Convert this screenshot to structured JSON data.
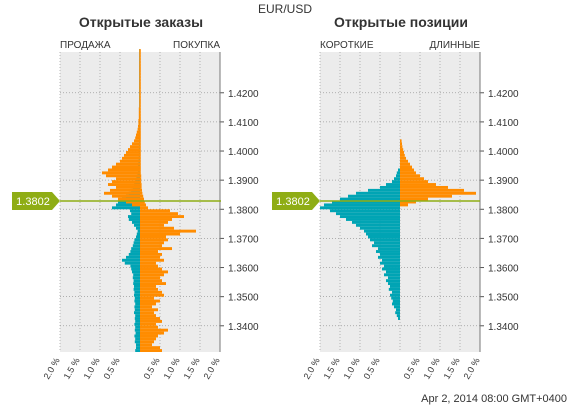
{
  "symbol": "EUR/USD",
  "timestamp": "Apr 2, 2014 08:00 GMT+0400",
  "colors": {
    "short": "#00a4b4",
    "long": "#ff8c00",
    "current": "#8fad15",
    "plot_bg": "#ececec",
    "grid": "#9a9a9a"
  },
  "current_price": "1.3802",
  "y_ticks": [
    "1.4200",
    "1.4100",
    "1.4000",
    "1.3900",
    "1.3800",
    "1.3700",
    "1.3600",
    "1.3500",
    "1.3400"
  ],
  "x_ticks": [
    "2.0 %",
    "1.5 %",
    "1.0 %",
    "0.5 %",
    "0.5 %",
    "1.0 %",
    "1.5 %",
    "2.0 %"
  ],
  "orders": {
    "title": "Открытые заказы",
    "left_label": "ПРОДАЖА",
    "right_label": "ПОКУПКА"
  },
  "positions": {
    "title": "Открытые позиции",
    "left_label": "КОРОТКИЕ",
    "right_label": "ДЛИННЫЕ"
  },
  "chart_data": [
    {
      "type": "bar",
      "title": "Открытые заказы",
      "xlabel_left": "ПРОДАЖА",
      "xlabel_right": "ПОКУПКА",
      "xlim": [
        -2.0,
        2.0
      ],
      "ylim": [
        1.331,
        1.434
      ],
      "price_step": 0.001,
      "price_start": 1.331,
      "series": [
        {
          "name": "ПРОДАЖА",
          "color": "#00a4b4",
          "values": [
            0.12,
            0.1,
            0.1,
            0.13,
            0.12,
            0.14,
            0.11,
            0.13,
            0.12,
            0.14,
            0.12,
            0.13,
            0.12,
            0.15,
            0.13,
            0.14,
            0.12,
            0.14,
            0.13,
            0.15,
            0.14,
            0.16,
            0.15,
            0.17,
            0.16,
            0.18,
            0.17,
            0.2,
            0.22,
            0.24,
            0.38,
            0.45,
            0.35,
            0.28,
            0.24,
            0.22,
            0.18,
            0.16,
            0.14,
            0.1,
            0.08,
            0.06,
            0.1,
            0.15,
            0.2,
            0.28,
            0.3,
            0.22,
            0.25,
            0.7,
            0.6,
            0.55,
            0.45,
            0.35,
            0.28,
            0.22,
            0.18,
            0.15,
            0.12,
            0.1,
            0.08,
            0.06,
            0.05,
            0.05,
            0.04,
            0.04,
            0.03,
            0.03,
            0.03,
            0.03,
            0.03,
            0.02,
            0.02,
            0.02,
            0.02,
            0.02,
            0.02,
            0.02,
            0.02,
            0.02,
            0.02,
            0.02,
            0.02,
            0.02,
            0.02,
            0.02,
            0.02,
            0.02,
            0.02,
            0.02,
            0.02,
            0.02,
            0.02,
            0.02,
            0.02,
            0.02,
            0.02,
            0.02,
            0.02,
            0.02,
            0.02,
            0.02,
            0.02,
            0.02
          ]
        },
        {
          "name": "ПОКУПКА",
          "color": "#ff8c00",
          "values": [
            0.55,
            0.5,
            0.3,
            0.35,
            0.4,
            0.45,
            0.6,
            0.7,
            0.45,
            0.4,
            0.55,
            0.5,
            0.4,
            0.35,
            0.45,
            0.3,
            0.4,
            0.5,
            0.35,
            0.6,
            0.55,
            0.45,
            0.4,
            0.65,
            0.55,
            0.5,
            0.6,
            0.7,
            0.55,
            0.45,
            0.4,
            0.6,
            0.5,
            0.55,
            0.45,
            0.8,
            0.55,
            0.6,
            0.7,
            0.65,
            1.0,
            1.4,
            0.85,
            0.6,
            0.7,
            0.8,
            1.1,
            0.95,
            0.75,
            0.2,
            0.15,
            0.12,
            0.1,
            0.08,
            0.06,
            0.05,
            0.04,
            0.04,
            0.03,
            0.03,
            0.03,
            0.02,
            0.02,
            0.02,
            0.02,
            0.02,
            0.02,
            0.02,
            0.02,
            0.02,
            0.02,
            0.02,
            0.02,
            0.02,
            0.02,
            0.02,
            0.02,
            0.02,
            0.02,
            0.02,
            0.02,
            0.02,
            0.02,
            0.02,
            0.02,
            0.02,
            0.02,
            0.02,
            0.02,
            0.02,
            0.02,
            0.02,
            0.02,
            0.02,
            0.02,
            0.02,
            0.02,
            0.02,
            0.02,
            0.02,
            0.02,
            0.02,
            0.02,
            0.02
          ]
        }
      ],
      "mirror_sell_long_side": [
        0,
        0,
        0,
        0,
        0,
        0,
        0,
        0,
        0,
        0,
        0,
        0,
        0,
        0,
        0,
        0,
        0,
        0,
        0,
        0,
        0,
        0,
        0,
        0,
        0,
        0,
        0,
        0,
        0,
        0,
        0,
        0,
        0,
        0,
        0,
        0,
        0,
        0,
        0,
        0,
        0,
        0,
        0,
        0,
        0,
        0,
        0,
        0,
        0,
        0,
        0.2,
        0.35,
        0.55,
        0.7,
        0.9,
        0.75,
        0.6,
        0.8,
        0.7,
        0.6,
        0.85,
        0.95,
        0.8,
        0.7,
        0.6,
        0.5,
        0.45,
        0.4,
        0.35,
        0.3,
        0.25,
        0.2,
        0.15,
        0.12,
        0.1,
        0.08,
        0.06,
        0.05,
        0.04,
        0.04,
        0.03,
        0.03,
        0.03,
        0.03,
        0.02,
        0.02,
        0.02,
        0.02,
        0.02,
        0.02,
        0.02,
        0.02,
        0.02,
        0.02,
        0.02,
        0.02,
        0.02,
        0.02,
        0.02,
        0.02,
        0.02,
        0.02,
        0.02,
        0.02
      ]
    },
    {
      "type": "bar",
      "title": "Открытые позиции",
      "xlabel_left": "КОРОТКИЕ",
      "xlabel_right": "ДЛИННЫЕ",
      "xlim": [
        -2.0,
        2.0
      ],
      "ylim": [
        1.331,
        1.434
      ],
      "price_step": 0.001,
      "price_start": 1.331,
      "series": [
        {
          "name": "КОРОТКИЕ",
          "color": "#00a4b4",
          "values": [
            0,
            0,
            0,
            0,
            0,
            0,
            0,
            0,
            0,
            0,
            0,
            0.05,
            0.08,
            0.12,
            0.1,
            0.15,
            0.2,
            0.18,
            0.22,
            0.25,
            0.2,
            0.28,
            0.25,
            0.3,
            0.35,
            0.3,
            0.4,
            0.35,
            0.45,
            0.4,
            0.5,
            0.45,
            0.55,
            0.5,
            0.6,
            0.55,
            0.7,
            0.65,
            0.75,
            0.8,
            0.85,
            0.9,
            1.0,
            1.1,
            1.2,
            1.35,
            1.5,
            1.6,
            1.75,
            2.0,
            1.9,
            1.7,
            1.5,
            1.3,
            1.1,
            0.8,
            0.5,
            0.35,
            0.2,
            0.15,
            0.1,
            0.08,
            0.05,
            0,
            0,
            0,
            0,
            0,
            0,
            0,
            0,
            0,
            0,
            0,
            0,
            0,
            0,
            0,
            0,
            0,
            0,
            0,
            0,
            0,
            0,
            0,
            0,
            0,
            0,
            0,
            0,
            0,
            0,
            0,
            0,
            0,
            0,
            0,
            0,
            0,
            0,
            0,
            0,
            0,
            0
          ]
        },
        {
          "name": "ДЛИННЫЕ",
          "color": "#ff8c00",
          "values": [
            0,
            0,
            0,
            0,
            0,
            0,
            0,
            0,
            0,
            0,
            0,
            0,
            0,
            0,
            0,
            0,
            0,
            0,
            0,
            0,
            0,
            0,
            0,
            0,
            0,
            0,
            0,
            0,
            0,
            0,
            0,
            0,
            0,
            0,
            0,
            0,
            0,
            0,
            0,
            0,
            0,
            0,
            0,
            0,
            0,
            0,
            0,
            0,
            0,
            0,
            0.2,
            0.4,
            0.7,
            1.3,
            1.9,
            1.6,
            1.2,
            0.9,
            0.7,
            0.6,
            0.5,
            0.4,
            0.35,
            0.3,
            0.25,
            0.2,
            0.15,
            0.12,
            0.1,
            0.08,
            0.06,
            0.05,
            0.04,
            0,
            0,
            0,
            0,
            0,
            0,
            0,
            0,
            0,
            0,
            0,
            0,
            0,
            0,
            0,
            0,
            0,
            0,
            0,
            0,
            0,
            0,
            0,
            0,
            0,
            0,
            0,
            0,
            0,
            0
          ]
        }
      ]
    }
  ]
}
